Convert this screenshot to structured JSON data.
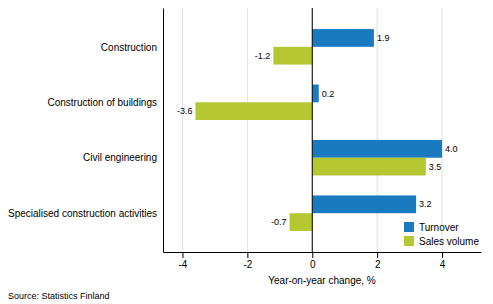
{
  "chart_data": {
    "type": "bar",
    "orientation": "horizontal",
    "categories": [
      "Specialised construction activities",
      "Civil engineering",
      "Construction of buildings",
      "Construction"
    ],
    "series": [
      {
        "name": "Turnover",
        "color": "#1a7abf",
        "values": [
          3.2,
          4.0,
          0.2,
          1.9
        ],
        "value_labels": [
          "3.2",
          "4.0",
          "0.2",
          "1.9"
        ]
      },
      {
        "name": "Sales volume",
        "color": "#b5c832",
        "values": [
          -0.7,
          3.5,
          -3.6,
          -1.2
        ]
      }
    ],
    "xlabel": "Year-on-year change, %",
    "xlim": [
      -4.6,
      5.2
    ],
    "xticks": [
      -4,
      -2,
      0,
      2,
      4
    ],
    "grid": true,
    "legend": "lower right",
    "data_labels": true,
    "source": "Source: Statistics Finland"
  }
}
